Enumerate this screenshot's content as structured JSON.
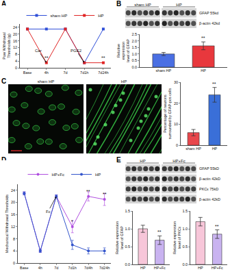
{
  "chart_data": [
    {
      "panel": "A",
      "type": "line",
      "categories": [
        "Base",
        "4h",
        "7d",
        "7d1h",
        "7d24h"
      ],
      "y_label": "Paw Withdrawal Thresholds (g)",
      "ylim": [
        0,
        26
      ],
      "yticks": [
        0,
        4,
        8,
        12,
        16,
        20,
        24
      ],
      "legend": "top",
      "series": [
        {
          "name": "sham HP",
          "color": "#2f4fd8",
          "marker": "square",
          "values": [
            23,
            23,
            23,
            3,
            23
          ]
        },
        {
          "name": "HP",
          "color": "#e02424",
          "marker": "square",
          "values": [
            23,
            3,
            23,
            3,
            3
          ]
        }
      ],
      "annotations": [
        {
          "category": "4h",
          "series": "HP",
          "text": "**"
        },
        {
          "category": "7d24h",
          "series": "HP",
          "text": "**"
        }
      ],
      "arrows": [
        {
          "category": "4h",
          "series": "HP",
          "text": "Car"
        },
        {
          "category": "7d1h",
          "series": "HP",
          "text": "PGE2"
        }
      ]
    },
    {
      "panel": "B",
      "type": "bar",
      "categories": [
        "sham HP",
        "HP"
      ],
      "values": [
        1.0,
        1.62
      ],
      "errors": [
        0.12,
        0.3
      ],
      "colors": [
        "#4a6fe3",
        "#e8383d"
      ],
      "y_label": "Relative expression level of GFAP",
      "ylim": [
        0,
        2.5
      ],
      "yticks": [
        {
          "value": 0,
          "label": "0.0"
        },
        0.5,
        {
          "value": 1,
          "label": "1.0"
        },
        1.5,
        {
          "value": 2,
          "label": "2.0"
        },
        2.5
      ],
      "annotations": [
        {
          "category": "HP",
          "text": "**"
        }
      ]
    },
    {
      "panel": "C",
      "type": "bar",
      "categories": [
        "sham HP",
        "HP"
      ],
      "values": [
        6,
        24
      ],
      "errors": [
        1.5,
        3.5
      ],
      "colors": [
        "#e8474c",
        "#3a6fd8"
      ],
      "y_label": "Percentage of neurons surrounded by GFAP-pos cells",
      "ylim": [
        0,
        30
      ],
      "yticks": [
        0,
        10,
        20,
        30
      ],
      "annotations": [
        {
          "category": "HP",
          "text": "**"
        }
      ]
    },
    {
      "panel": "D",
      "type": "line",
      "categories": [
        "Base",
        "4h",
        "7d",
        "7d1h",
        "7d4h",
        "7d24h"
      ],
      "y_label": "Mechanical Withdrawal Thresholds",
      "ylim": [
        0,
        26
      ],
      "yticks": [
        0,
        4,
        8,
        12,
        16,
        20,
        24
      ],
      "legend": "top",
      "series": [
        {
          "name": "HP+Fc",
          "color": "#b04fe0",
          "marker": "circle",
          "values": [
            23,
            4,
            22,
            12,
            22,
            21
          ],
          "errors": [
            0.5,
            0.5,
            0.5,
            2,
            1.5,
            2
          ]
        },
        {
          "name": "HP",
          "color": "#3355cc",
          "marker": "circle",
          "values": [
            23,
            4,
            22,
            6,
            4,
            4
          ],
          "errors": [
            0.5,
            0.5,
            0.5,
            1.5,
            1,
            1
          ]
        }
      ],
      "annotations": [
        {
          "category": "7d1h",
          "series": "HP+Fc",
          "text": "*"
        },
        {
          "category": "7d4h",
          "series": "HP+Fc",
          "text": "**"
        },
        {
          "category": "7d24h",
          "series": "HP+Fc",
          "text": "**"
        }
      ],
      "arrows": [
        {
          "category": "7d",
          "series": "HP+Fc",
          "text": "Fc"
        }
      ]
    },
    {
      "panel": "E",
      "type": "bar",
      "categories": [
        "HP",
        "HP+Fc"
      ],
      "values": [
        1.0,
        0.68
      ],
      "errors": [
        0.1,
        0.12
      ],
      "colors": [
        "#f7c6d9",
        "#c9b3f0"
      ],
      "y_label": "Relative expression level of GFAP",
      "ylim": [
        0,
        1.5
      ],
      "yticks": [
        {
          "value": 0,
          "label": "0.0"
        },
        0.5,
        {
          "value": 1,
          "label": "1.0"
        },
        1.5
      ],
      "annotations": [
        {
          "category": "HP+Fc",
          "text": "**"
        }
      ]
    },
    {
      "panel": "E",
      "type": "bar",
      "categories": [
        "HP",
        "HP+Fc"
      ],
      "values": [
        1.2,
        0.85
      ],
      "errors": [
        0.12,
        0.12
      ],
      "colors": [
        "#f7c6d9",
        "#c9b3f0"
      ],
      "y_label": "Relative expression level of PKCε",
      "ylim": [
        0,
        1.5
      ],
      "yticks": [
        {
          "value": 0,
          "label": "0.0"
        },
        0.5,
        {
          "value": 1,
          "label": "1.0"
        },
        1.5
      ],
      "annotations": [
        {
          "category": "HP+Fc",
          "text": "**"
        }
      ]
    }
  ],
  "images": [
    {
      "panel": "B",
      "kind": "blot",
      "groups": [
        "sham HP",
        "HP"
      ],
      "bands": [
        "GFAP 55kd",
        "β-actin 42kd"
      ]
    },
    {
      "panel": "C",
      "kind": "micrograph",
      "groups": [
        "sham HP",
        "HP"
      ]
    },
    {
      "panel": "E",
      "kind": "blot",
      "groups": [
        "HP",
        "HP+Fc"
      ],
      "bands": [
        "GFAP 55kD",
        "β-actin 42kD",
        "PKCε 75kD",
        "β-actin 42kD"
      ]
    }
  ]
}
